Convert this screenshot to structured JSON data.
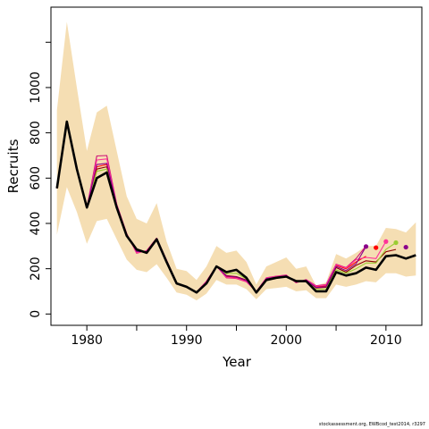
{
  "chart_data": {
    "type": "line",
    "title": "",
    "xlabel": "Year",
    "ylabel": "Recruits",
    "xlim": [
      1976.4,
      2013.6
    ],
    "ylim": [
      -50,
      1355
    ],
    "grid": false,
    "x_ticks": [
      {
        "value": 1980,
        "label": "1980"
      },
      {
        "value": 1985,
        "label": ""
      },
      {
        "value": 1990,
        "label": "1990"
      },
      {
        "value": 1995,
        "label": ""
      },
      {
        "value": 2000,
        "label": "2000"
      },
      {
        "value": 2005,
        "label": ""
      },
      {
        "value": 2010,
        "label": "2010"
      }
    ],
    "y_ticks": [
      {
        "value": 0,
        "label": "0"
      },
      {
        "value": 200,
        "label": "200"
      },
      {
        "value": 400,
        "label": "400"
      },
      {
        "value": 600,
        "label": "600"
      },
      {
        "value": 800,
        "label": "800"
      },
      {
        "value": 1000,
        "label": "1000"
      },
      {
        "value": 1200,
        "label": ""
      }
    ],
    "x": [
      1977,
      1978,
      1979,
      1980,
      1981,
      1982,
      1983,
      1984,
      1985,
      1986,
      1987,
      1988,
      1989,
      1990,
      1991,
      1992,
      1993,
      1994,
      1995,
      1996,
      1997,
      1998,
      1999,
      2000,
      2001,
      2002,
      2003,
      2004,
      2005,
      2006,
      2007,
      2008,
      2009,
      2010,
      2011,
      2012,
      2013
    ],
    "band": {
      "color": "#f5deb3",
      "lower": [
        350,
        560,
        450,
        310,
        410,
        420,
        330,
        240,
        195,
        185,
        220,
        160,
        95,
        85,
        60,
        90,
        150,
        130,
        130,
        110,
        65,
        110,
        115,
        120,
        100,
        105,
        70,
        70,
        130,
        120,
        130,
        145,
        140,
        180,
        180,
        165,
        170
      ],
      "upper": [
        900,
        1290,
        1000,
        720,
        890,
        920,
        720,
        520,
        420,
        400,
        490,
        320,
        200,
        190,
        150,
        210,
        300,
        270,
        280,
        230,
        130,
        210,
        230,
        250,
        200,
        210,
        125,
        140,
        265,
        245,
        270,
        300,
        300,
        380,
        375,
        360,
        405
      ]
    },
    "series": [
      {
        "color": "#000000",
        "values": [
          555,
          850,
          640,
          470,
          600,
          625,
          470,
          345,
          285,
          270,
          330,
          230,
          135,
          120,
          95,
          135,
          210,
          185,
          195,
          160,
          95,
          150,
          160,
          165,
          145,
          145,
          100,
          100,
          185,
          170,
          180,
          205,
          195,
          255,
          260,
          245,
          260
        ]
      },
      {
        "color": "#8b0000",
        "values": [
          555,
          850,
          640,
          470,
          640,
          650,
          480,
          350,
          280,
          275,
          330,
          235,
          135,
          120,
          95,
          140,
          210,
          170,
          165,
          150,
          98,
          155,
          162,
          168,
          142,
          148,
          115,
          118,
          205,
          185,
          215,
          235,
          230,
          275,
          285,
          null,
          null
        ]
      },
      {
        "color": "#ff0000",
        "values": [
          555,
          850,
          640,
          470,
          650,
          660,
          482,
          352,
          275,
          278,
          332,
          236,
          136,
          121,
          96,
          142,
          211,
          165,
          160,
          145,
          98,
          157,
          165,
          170,
          140,
          150,
          120,
          125,
          215,
          200,
          230,
          255,
          null,
          null,
          null,
          null,
          null
        ]
      },
      {
        "color": "#cd1076",
        "values": [
          555,
          850,
          640,
          470,
          698,
          700,
          485,
          355,
          268,
          280,
          335,
          238,
          137,
          122,
          97,
          145,
          212,
          160,
          157,
          142,
          99,
          160,
          167,
          172,
          138,
          152,
          125,
          130,
          220,
          205,
          245,
          300,
          null,
          null,
          null,
          null,
          null
        ]
      },
      {
        "color": "#ff3399",
        "values": [
          555,
          850,
          640,
          470,
          680,
          685,
          484,
          354,
          270,
          279,
          334,
          237,
          136,
          122,
          96,
          144,
          212,
          162,
          158,
          143,
          99,
          159,
          166,
          171,
          139,
          151,
          123,
          128,
          218,
          203,
          240,
          250,
          245,
          320,
          null,
          null,
          null
        ]
      },
      {
        "color": "#9acd32",
        "values": [
          555,
          850,
          640,
          470,
          630,
          640,
          478,
          348,
          280,
          272,
          331,
          233,
          135,
          120,
          95,
          137,
          210,
          178,
          180,
          155,
          97,
          152,
          161,
          166,
          143,
          146,
          108,
          110,
          195,
          180,
          200,
          225,
          225,
          285,
          315,
          null,
          null
        ]
      },
      {
        "color": "#8b008b",
        "values": [
          555,
          850,
          640,
          470,
          660,
          665,
          481,
          351,
          276,
          276,
          332,
          235,
          136,
          121,
          95,
          141,
          211,
          168,
          163,
          148,
          98,
          156,
          163,
          169,
          141,
          149,
          117,
          121,
          210,
          192,
          222,
          298,
          null,
          null,
          null,
          null,
          null
        ]
      }
    ],
    "endpoints": [
      {
        "x": 2008,
        "y": 298,
        "color": "#8b008b"
      },
      {
        "x": 2009,
        "y": 293,
        "color": "#ff0000"
      },
      {
        "x": 2010,
        "y": 320,
        "color": "#ff3399"
      },
      {
        "x": 2011,
        "y": 315,
        "color": "#9acd32"
      },
      {
        "x": 2012,
        "y": 295,
        "color": "#8b008b"
      }
    ]
  },
  "footer": "stockassessment.org, EWBcod_test2014, r3297"
}
